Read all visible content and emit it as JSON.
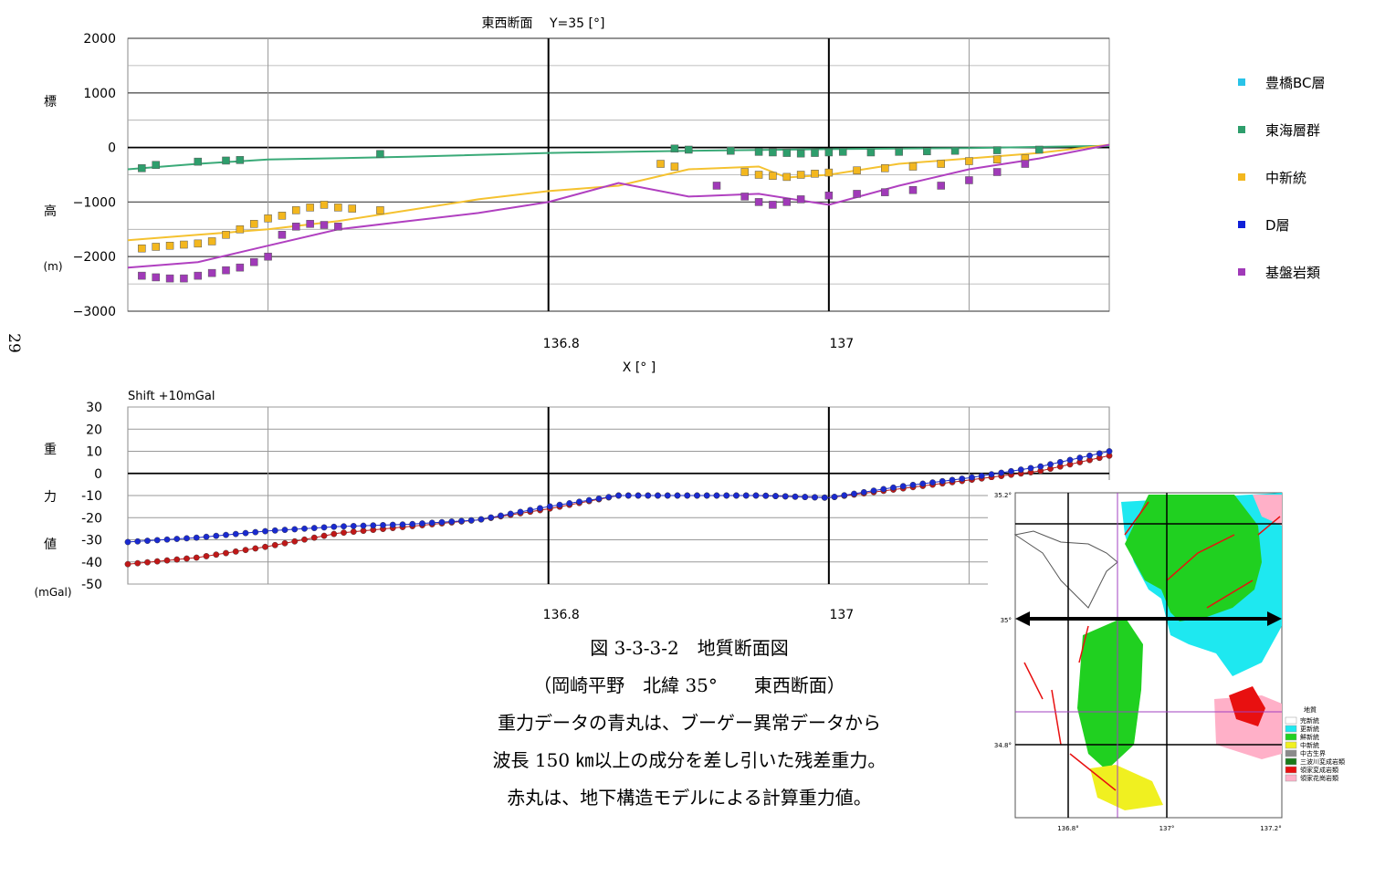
{
  "page_number": "29",
  "chart_data": [
    {
      "type": "scatter",
      "title": "東西断面　 Y=35 [°]",
      "xlabel": "X [° ]",
      "ylabel_chars": [
        "標",
        "高",
        "(m)"
      ],
      "ylim": [
        -3000,
        2000
      ],
      "xlim": [
        136.5,
        137.2
      ],
      "yticks": [
        2000,
        1000,
        0,
        -1000,
        -2000,
        -3000
      ],
      "ytick_labels": [
        "2000",
        "1000",
        "0",
        "−1000",
        "−2000",
        "−3000"
      ],
      "xticks": [
        136.8,
        137
      ],
      "xtick_labels": [
        "136.8",
        "137"
      ],
      "grid": true,
      "legend_position": "right",
      "legend": [
        {
          "name": "豊橋BC層",
          "color": "#29c3e8"
        },
        {
          "name": "東海層群",
          "color": "#2e9e6c"
        },
        {
          "name": "中新統",
          "color": "#f3b71e"
        },
        {
          "name": "D層",
          "color": "#1020d8"
        },
        {
          "name": "基盤岩類",
          "color": "#a03ab8"
        }
      ],
      "lines": [
        {
          "name": "東海層群",
          "color": "#3aaa78",
          "x": [
            136.5,
            136.55,
            136.6,
            136.7,
            136.8,
            136.9,
            137.0,
            137.1,
            137.2
          ],
          "y": [
            -400,
            -300,
            -220,
            -170,
            -100,
            -60,
            -30,
            -10,
            30
          ]
        },
        {
          "name": "中新統",
          "color": "#f5c230",
          "x": [
            136.5,
            136.55,
            136.6,
            136.65,
            136.7,
            136.75,
            136.8,
            136.85,
            136.9,
            136.95,
            136.97,
            137.0,
            137.05,
            137.1,
            137.15,
            137.2
          ],
          "y": [
            -1700,
            -1600,
            -1500,
            -1350,
            -1150,
            -950,
            -800,
            -700,
            -400,
            -350,
            -550,
            -500,
            -300,
            -200,
            -100,
            50
          ]
        },
        {
          "name": "基盤岩類",
          "color": "#b040c0",
          "x": [
            136.5,
            136.55,
            136.6,
            136.65,
            136.7,
            136.75,
            136.8,
            136.85,
            136.9,
            136.95,
            137.0,
            137.05,
            137.1,
            137.15,
            137.2
          ],
          "y": [
            -2200,
            -2100,
            -1800,
            -1500,
            -1350,
            -1200,
            -1000,
            -650,
            -900,
            -850,
            -1050,
            -700,
            -400,
            -200,
            50
          ]
        }
      ],
      "series": [
        {
          "name": "東海層群",
          "color": "#2e9e6c",
          "x": [
            136.51,
            136.52,
            136.55,
            136.57,
            136.58,
            136.68,
            136.89,
            136.9,
            136.93,
            136.95,
            136.96,
            136.97,
            136.98,
            136.99,
            137.0,
            137.01,
            137.03,
            137.05,
            137.07,
            137.09,
            137.12,
            137.15
          ],
          "y": [
            -380,
            -320,
            -260,
            -240,
            -230,
            -120,
            -20,
            -40,
            -60,
            -80,
            -90,
            -100,
            -110,
            -100,
            -90,
            -80,
            -90,
            -80,
            -70,
            -60,
            -50,
            -40
          ]
        },
        {
          "name": "中新統",
          "color": "#f3b71e",
          "x": [
            136.51,
            136.52,
            136.53,
            136.54,
            136.55,
            136.56,
            136.57,
            136.58,
            136.59,
            136.6,
            136.61,
            136.62,
            136.63,
            136.64,
            136.65,
            136.66,
            136.68,
            136.88,
            136.89,
            136.94,
            136.95,
            136.96,
            136.97,
            136.98,
            136.99,
            137.0,
            137.02,
            137.04,
            137.06,
            137.08,
            137.1,
            137.12,
            137.14
          ],
          "y": [
            -1850,
            -1820,
            -1800,
            -1780,
            -1760,
            -1720,
            -1600,
            -1500,
            -1400,
            -1300,
            -1250,
            -1150,
            -1100,
            -1050,
            -1100,
            -1120,
            -1150,
            -300,
            -350,
            -450,
            -500,
            -520,
            -540,
            -500,
            -480,
            -460,
            -420,
            -380,
            -350,
            -300,
            -250,
            -220,
            -200
          ]
        },
        {
          "name": "基盤岩類",
          "color": "#a03ab8",
          "x": [
            136.51,
            136.52,
            136.53,
            136.54,
            136.55,
            136.56,
            136.57,
            136.58,
            136.59,
            136.6,
            136.61,
            136.62,
            136.63,
            136.64,
            136.65,
            136.92,
            136.94,
            136.95,
            136.96,
            136.97,
            136.98,
            137.0,
            137.02,
            137.04,
            137.06,
            137.08,
            137.1,
            137.12,
            137.14
          ],
          "y": [
            -2350,
            -2380,
            -2400,
            -2400,
            -2350,
            -2300,
            -2250,
            -2200,
            -2100,
            -2000,
            -1600,
            -1450,
            -1400,
            -1420,
            -1450,
            -700,
            -900,
            -1000,
            -1050,
            -1000,
            -950,
            -880,
            -850,
            -820,
            -780,
            -700,
            -600,
            -450,
            -300
          ]
        }
      ]
    },
    {
      "type": "line",
      "annotation": "Shift +10mGal",
      "ylabel_chars": [
        "重",
        "力",
        "値",
        "(mGal)"
      ],
      "ylim": [
        -50,
        30
      ],
      "xlim": [
        136.5,
        137.2
      ],
      "yticks": [
        30,
        20,
        10,
        0,
        -10,
        -20,
        -30,
        -40,
        -50
      ],
      "ytick_labels": [
        "30",
        "20",
        "10",
        "0",
        "-10",
        "-20",
        "-30",
        "-40",
        "-50"
      ],
      "xticks": [
        136.8,
        137
      ],
      "xtick_labels": [
        "136.8",
        "137"
      ],
      "grid": true,
      "series": [
        {
          "name": "blue",
          "color": "#1a2ad0",
          "x": [
            136.5,
            136.55,
            136.6,
            136.65,
            136.7,
            136.75,
            136.8,
            136.85,
            136.9,
            136.95,
            137.0,
            137.05,
            137.1,
            137.15,
            137.2
          ],
          "y": [
            -31,
            -29,
            -26,
            -24,
            -23,
            -21,
            -15,
            -10,
            -10,
            -10,
            -11,
            -6,
            -2,
            3,
            10
          ]
        },
        {
          "name": "red",
          "color": "#c01818",
          "x": [
            136.5,
            136.55,
            136.6,
            136.65,
            136.7,
            136.75,
            136.8,
            136.85,
            136.9,
            136.95,
            137.0,
            137.05,
            137.1,
            137.15,
            137.2
          ],
          "y": [
            -41,
            -38,
            -33,
            -27,
            -24,
            -21,
            -16,
            -10,
            -10,
            -10,
            -11,
            -7,
            -3,
            1,
            8
          ]
        }
      ]
    }
  ],
  "caption": {
    "line1": "図 3-3-3-2　地質断面図",
    "line2": "（岡崎平野　北緯 35°　　東西断面）",
    "line3": "重力データの青丸は、ブーゲー異常データから",
    "line4": "波長 150 ㎞以上の成分を差し引いた残差重力。",
    "line5": "赤丸は、地下構造モデルによる計算重力値。"
  },
  "map": {
    "lat_labels": [
      "35.2°",
      "35°",
      "34.8°"
    ],
    "lon_labels": [
      "136.8°",
      "137°",
      "137.2°"
    ],
    "legend_title": "地質",
    "legend": [
      {
        "name": "完新統",
        "color": "#ffffff"
      },
      {
        "name": "更新統",
        "color": "#1ee8f0"
      },
      {
        "name": "鮮新統",
        "color": "#20d020"
      },
      {
        "name": "中新統",
        "color": "#f0f020"
      },
      {
        "name": "中古生界",
        "color": "#8a8a8a"
      },
      {
        "name": "三波川変成岩類",
        "color": "#1a7a1a"
      },
      {
        "name": "領家変成岩類",
        "color": "#e81010"
      },
      {
        "name": "領家花崗岩類",
        "color": "#ffb0c8"
      }
    ]
  }
}
